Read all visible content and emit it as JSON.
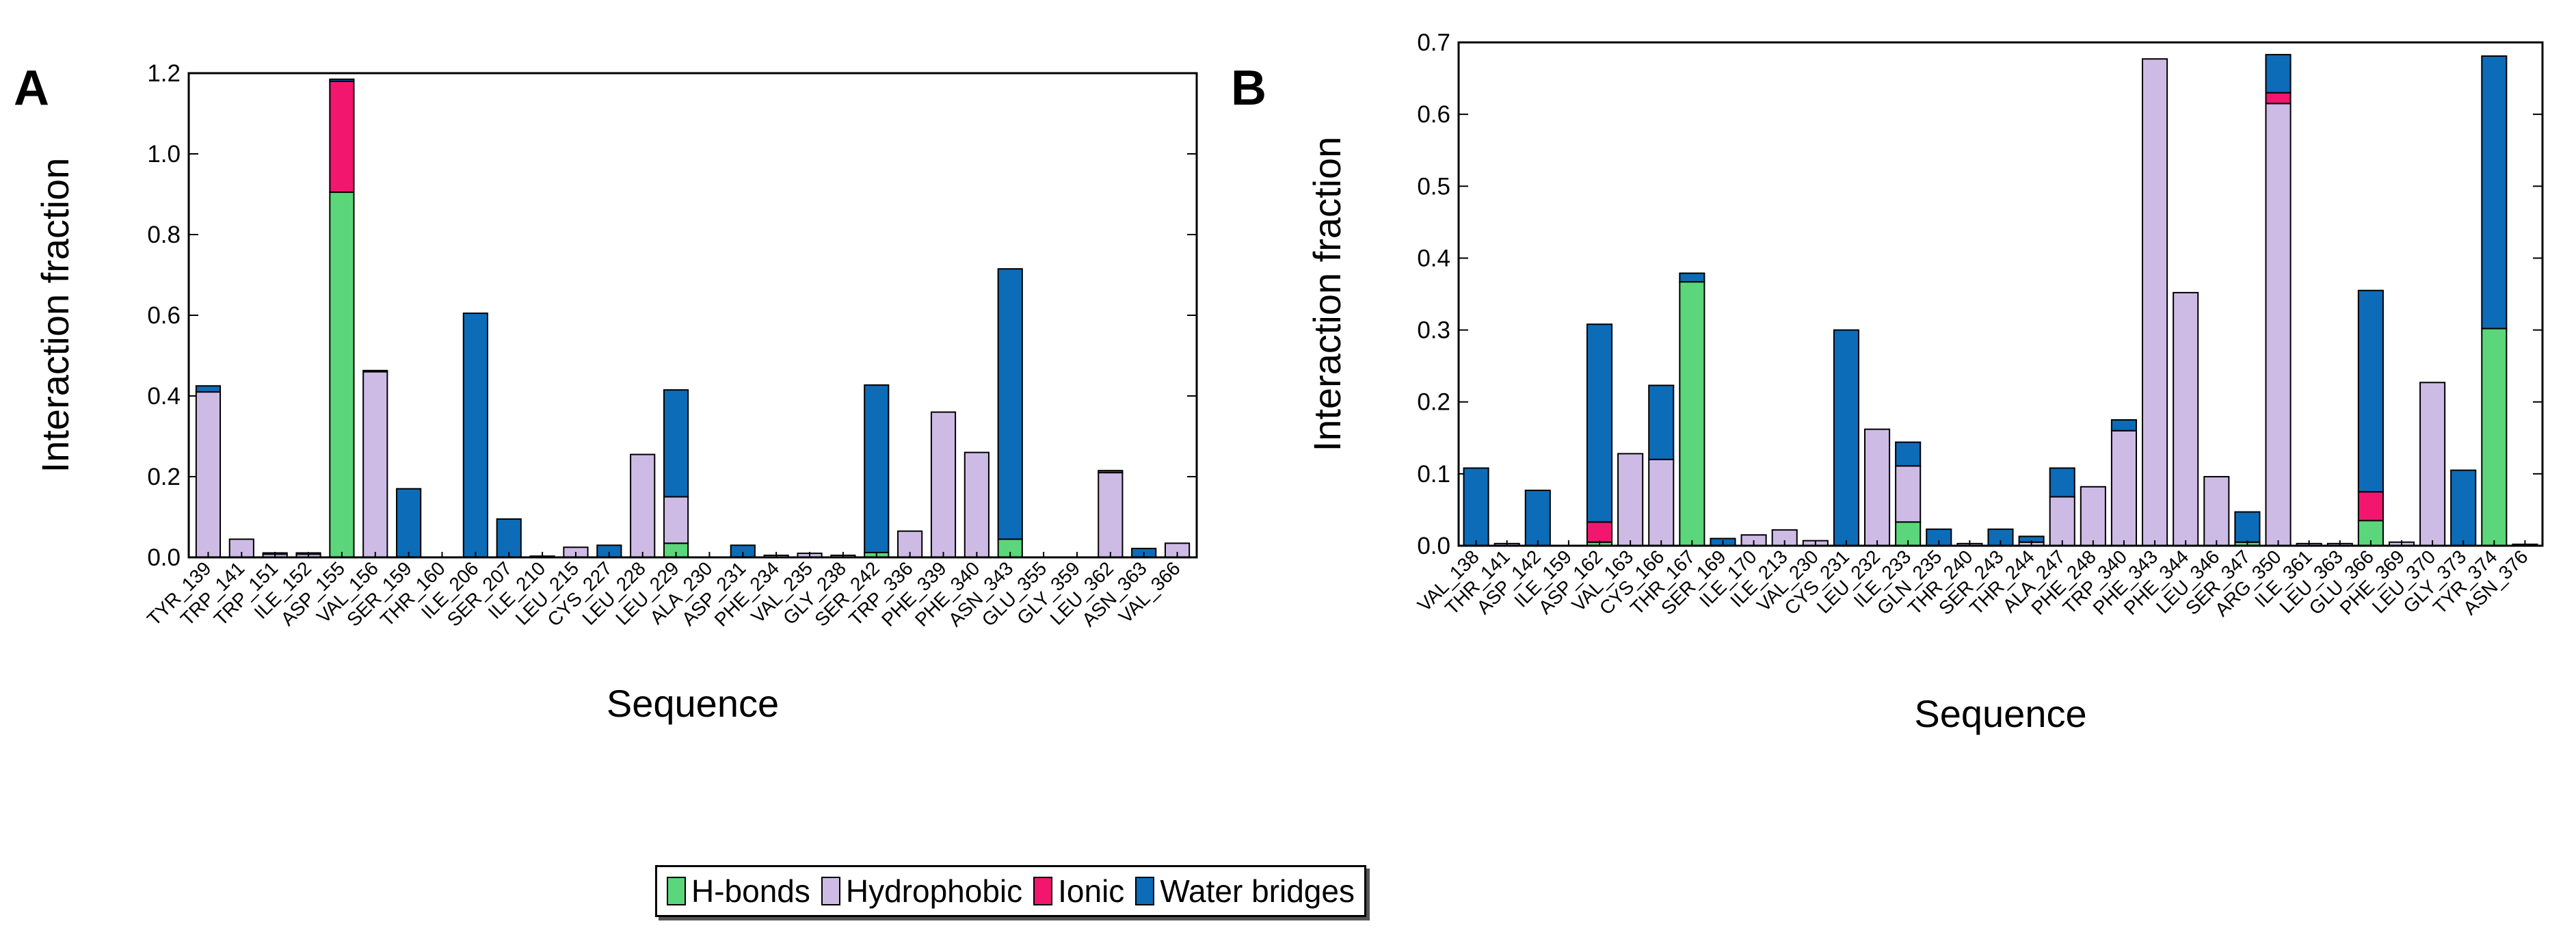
{
  "colors": {
    "hbonds": "#5CD67A",
    "hydrophobic": "#CDBBE6",
    "ionic": "#F2166F",
    "water": "#0C6CB8"
  },
  "legend": {
    "items": [
      {
        "label": "H-bonds",
        "key": "hbonds"
      },
      {
        "label": "Hydrophobic",
        "key": "hydrophobic"
      },
      {
        "label": "Ionic",
        "key": "ionic"
      },
      {
        "label": "Water bridges",
        "key": "water"
      }
    ]
  },
  "chart_data": [
    {
      "panel": "A",
      "type": "bar",
      "stacked": true,
      "xlabel": "Sequence",
      "ylabel": "Interaction fraction",
      "ylim": [
        0,
        1.2
      ],
      "yticks": [
        "0.0",
        "0.2",
        "0.4",
        "0.6",
        "0.8",
        "1.0",
        "1.2"
      ],
      "categories": [
        "TYR_139",
        "TRP_141",
        "TRP_151",
        "ILE_152",
        "ASP_155",
        "VAL_156",
        "SER_159",
        "THR_160",
        "ILE_206",
        "SER_207",
        "ILE_210",
        "LEU_215",
        "CYS_227",
        "LEU_228",
        "LEU_229",
        "ALA_230",
        "ASP_231",
        "PHE_234",
        "VAL_235",
        "GLY_238",
        "SER_242",
        "TRP_336",
        "PHE_339",
        "PHE_340",
        "ASN_343",
        "GLU_355",
        "GLY_359",
        "LEU_362",
        "ASN_363",
        "VAL_366"
      ],
      "series": [
        {
          "name": "H-bonds",
          "values": [
            0,
            0,
            0,
            0,
            0.905,
            0,
            0,
            0,
            0,
            0,
            0,
            0,
            0,
            0,
            0.035,
            0,
            0,
            0,
            0,
            0,
            0.012,
            0,
            0,
            0,
            0.045,
            0,
            0,
            0,
            0,
            0
          ]
        },
        {
          "name": "Hydrophobic",
          "values": [
            0.41,
            0.045,
            0.008,
            0.008,
            0,
            0.46,
            0,
            0,
            0,
            0,
            0.003,
            0.025,
            0,
            0.255,
            0.115,
            0,
            0,
            0.005,
            0.01,
            0.005,
            0,
            0.065,
            0.36,
            0.26,
            0,
            0,
            0,
            0.21,
            0,
            0.035
          ]
        },
        {
          "name": "Ionic",
          "values": [
            0,
            0,
            0,
            0,
            0.275,
            0,
            0,
            0,
            0,
            0,
            0,
            0,
            0,
            0,
            0,
            0,
            0,
            0,
            0,
            0,
            0,
            0,
            0,
            0,
            0,
            0,
            0,
            0,
            0,
            0
          ]
        },
        {
          "name": "Water bridges",
          "values": [
            0.015,
            0,
            0.003,
            0.003,
            0.005,
            0.003,
            0.17,
            0,
            0.605,
            0.095,
            0,
            0,
            0.03,
            0,
            0.265,
            0,
            0.03,
            0,
            0,
            0,
            0.415,
            0,
            0,
            0,
            0.67,
            0,
            0,
            0.005,
            0.022,
            0
          ]
        }
      ]
    },
    {
      "panel": "B",
      "type": "bar",
      "stacked": true,
      "xlabel": "Sequence",
      "ylabel": "Interaction fraction",
      "ylim": [
        0,
        0.7
      ],
      "yticks": [
        "0.0",
        "0.1",
        "0.2",
        "0.3",
        "0.4",
        "0.5",
        "0.6",
        "0.7"
      ],
      "categories": [
        "VAL_138",
        "THR_141",
        "ASP_142",
        "ILE_159",
        "ASP_162",
        "VAL_163",
        "CYS_166",
        "THR_167",
        "SER_169",
        "ILE_170",
        "ILE_213",
        "VAL_230",
        "CYS_231",
        "LEU_232",
        "ILE_233",
        "GLN_235",
        "THR_240",
        "SER_243",
        "THR_244",
        "ALA_247",
        "PHE_248",
        "TRP_340",
        "PHE_343",
        "PHE_344",
        "LEU_346",
        "SER_347",
        "ARG_350",
        "ILE_361",
        "LEU_363",
        "GLU_366",
        "PHE_369",
        "LEU_370",
        "GLY_373",
        "TYR_374",
        "ASN_376"
      ],
      "series": [
        {
          "name": "H-bonds",
          "values": [
            0,
            0,
            0,
            0,
            0.005,
            0,
            0,
            0.367,
            0,
            0,
            0,
            0,
            0,
            0,
            0.033,
            0,
            0,
            0,
            0,
            0,
            0,
            0,
            0,
            0,
            0,
            0.005,
            0,
            0,
            0,
            0.035,
            0,
            0,
            0,
            0.302,
            0
          ]
        },
        {
          "name": "Hydrophobic",
          "values": [
            0,
            0.003,
            0,
            0,
            0,
            0.128,
            0.12,
            0,
            0,
            0.015,
            0.022,
            0.007,
            0,
            0.162,
            0.078,
            0,
            0.003,
            0,
            0.005,
            0.068,
            0.082,
            0.16,
            0.677,
            0.352,
            0.096,
            0,
            0.615,
            0.003,
            0.003,
            0,
            0.005,
            0.227,
            0,
            0,
            0
          ]
        },
        {
          "name": "Ionic",
          "values": [
            0,
            0,
            0,
            0,
            0.028,
            0,
            0,
            0,
            0,
            0,
            0,
            0,
            0,
            0,
            0,
            0,
            0,
            0,
            0,
            0,
            0,
            0,
            0,
            0,
            0,
            0,
            0.015,
            0,
            0,
            0.04,
            0,
            0,
            0,
            0,
            0
          ]
        },
        {
          "name": "Water bridges",
          "values": [
            0.108,
            0,
            0.077,
            0,
            0.275,
            0,
            0.103,
            0.012,
            0.01,
            0,
            0,
            0,
            0.3,
            0,
            0.033,
            0.023,
            0,
            0.023,
            0.008,
            0.04,
            0,
            0.015,
            0,
            0,
            0,
            0.042,
            0.053,
            0,
            0,
            0.28,
            0,
            0,
            0.105,
            0.379,
            0.002
          ]
        }
      ]
    }
  ]
}
